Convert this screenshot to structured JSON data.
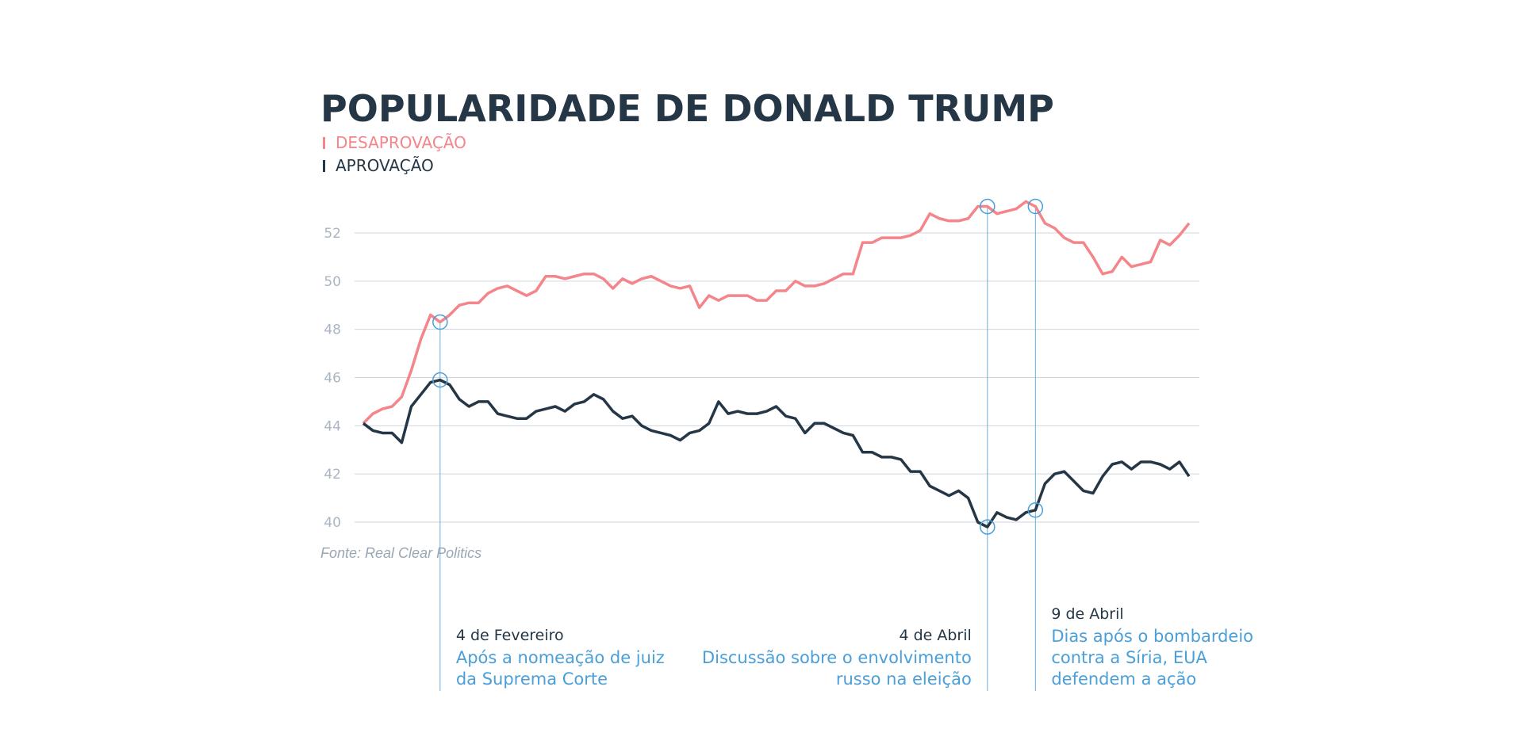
{
  "chart_data": {
    "type": "line",
    "title": "POPULARIDADE DE DONALD TRUMP",
    "source": "Fonte: Real Clear Politics",
    "categories": [
      null,
      null,
      null,
      null,
      null,
      null,
      null,
      null,
      null,
      null,
      null,
      null,
      null,
      null,
      null,
      null,
      null,
      null,
      null,
      null,
      null,
      null,
      null,
      null,
      null,
      null,
      null,
      null,
      null,
      null,
      null,
      null,
      null,
      null,
      null,
      null,
      null,
      null,
      null,
      null,
      null,
      null,
      null,
      null,
      null,
      null,
      null,
      null,
      null,
      null,
      null,
      null,
      null,
      null,
      null,
      null,
      null,
      null,
      null,
      null,
      null,
      null,
      null,
      null,
      null,
      null,
      null,
      null,
      null,
      null,
      null,
      null,
      null,
      null,
      null,
      null,
      null,
      null,
      null,
      null,
      null,
      null,
      null,
      null,
      null,
      null,
      null
    ],
    "series": [
      {
        "name": "DESAPROVAÇÃO",
        "color": "#f4858a",
        "values": [
          44.1,
          44.5,
          44.7,
          44.8,
          45.2,
          46.3,
          47.6,
          48.6,
          48.3,
          48.6,
          49.0,
          49.1,
          49.1,
          49.5,
          49.7,
          49.8,
          49.6,
          49.4,
          49.6,
          50.2,
          50.2,
          50.1,
          50.2,
          50.3,
          50.3,
          50.1,
          49.7,
          50.1,
          49.9,
          50.1,
          50.2,
          50.0,
          49.8,
          49.7,
          49.8,
          48.9,
          49.4,
          49.2,
          49.4,
          49.4,
          49.4,
          49.2,
          49.2,
          49.6,
          49.6,
          50.0,
          49.8,
          49.8,
          49.9,
          50.1,
          50.3,
          50.3,
          51.6,
          51.6,
          51.8,
          51.8,
          51.8,
          51.9,
          52.1,
          52.8,
          52.6,
          52.5,
          52.5,
          52.6,
          53.1,
          53.1,
          52.8,
          52.9,
          53.0,
          53.3,
          53.1,
          52.4,
          52.2,
          51.8,
          51.6,
          51.6,
          51.0,
          50.3,
          50.4,
          51.0,
          50.6,
          50.7,
          50.8,
          51.7,
          51.5,
          51.9,
          52.4
        ]
      },
      {
        "name": "APROVAÇÃO",
        "color": "#253746",
        "values": [
          44.1,
          43.8,
          43.7,
          43.7,
          43.3,
          44.8,
          45.3,
          45.8,
          45.9,
          45.7,
          45.1,
          44.8,
          45.0,
          45.0,
          44.5,
          44.4,
          44.3,
          44.3,
          44.6,
          44.7,
          44.8,
          44.6,
          44.9,
          45.0,
          45.3,
          45.1,
          44.6,
          44.3,
          44.4,
          44.0,
          43.8,
          43.7,
          43.6,
          43.4,
          43.7,
          43.8,
          44.1,
          45.0,
          44.5,
          44.6,
          44.5,
          44.5,
          44.6,
          44.8,
          44.4,
          44.3,
          43.7,
          44.1,
          44.1,
          43.9,
          43.7,
          43.6,
          42.9,
          42.9,
          42.7,
          42.7,
          42.6,
          42.1,
          42.1,
          41.5,
          41.3,
          41.1,
          41.3,
          41.0,
          40.0,
          39.8,
          40.4,
          40.2,
          40.1,
          40.4,
          40.5,
          41.6,
          42.0,
          42.1,
          41.7,
          41.3,
          41.2,
          41.9,
          42.4,
          42.5,
          42.2,
          42.5,
          42.5,
          42.4,
          42.2,
          42.5,
          41.9
        ]
      }
    ],
    "ylim": [
      40,
      52
    ],
    "yticks": [
      40,
      42,
      44,
      46,
      48,
      50,
      52
    ],
    "grid": true,
    "annotations": [
      {
        "at": 8,
        "date": "4 de Fevereiro",
        "text": [
          "Após a nomeação de juiz",
          "da Suprema Corte"
        ]
      },
      {
        "at": 65,
        "date": "4 de Abril",
        "text": [
          "Discussão sobre o envolvimento",
          "russo na eleição"
        ]
      },
      {
        "at": 70,
        "date": "9 de Abril",
        "text": [
          "Dias após o bombardeio",
          "contra a Síria, EUA",
          "defendem a ação"
        ]
      }
    ]
  }
}
